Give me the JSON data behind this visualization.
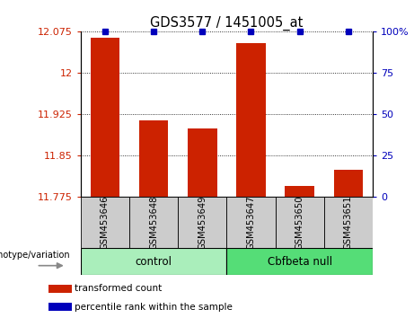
{
  "title": "GDS3577 / 1451005_at",
  "samples": [
    "GSM453646",
    "GSM453648",
    "GSM453649",
    "GSM453647",
    "GSM453650",
    "GSM453651"
  ],
  "transformed_counts": [
    12.065,
    11.915,
    11.9,
    12.055,
    11.795,
    11.825
  ],
  "percentile_ranks": [
    100,
    100,
    100,
    100,
    100,
    100
  ],
  "bar_color": "#cc2200",
  "dot_color": "#0000bb",
  "ylim_left": [
    11.775,
    12.075
  ],
  "yticks_left": [
    11.775,
    11.85,
    11.925,
    12.0,
    12.075
  ],
  "ytick_labels_left": [
    "11.775",
    "11.85",
    "11.925",
    "12",
    "12.075"
  ],
  "ylim_right": [
    0,
    100
  ],
  "yticks_right": [
    0,
    25,
    50,
    75,
    100
  ],
  "ytick_labels_right": [
    "0",
    "25",
    "50",
    "75",
    "100%"
  ],
  "control_color": "#aaeebb",
  "cbfbeta_color": "#55dd77",
  "xticklabel_bg": "#cccccc",
  "legend_items": [
    "transformed count",
    "percentile rank within the sample"
  ],
  "legend_colors": [
    "#cc2200",
    "#0000bb"
  ],
  "genotype_label": "genotype/variation",
  "control_label": "control",
  "cbfbeta_label": "Cbfbeta null"
}
